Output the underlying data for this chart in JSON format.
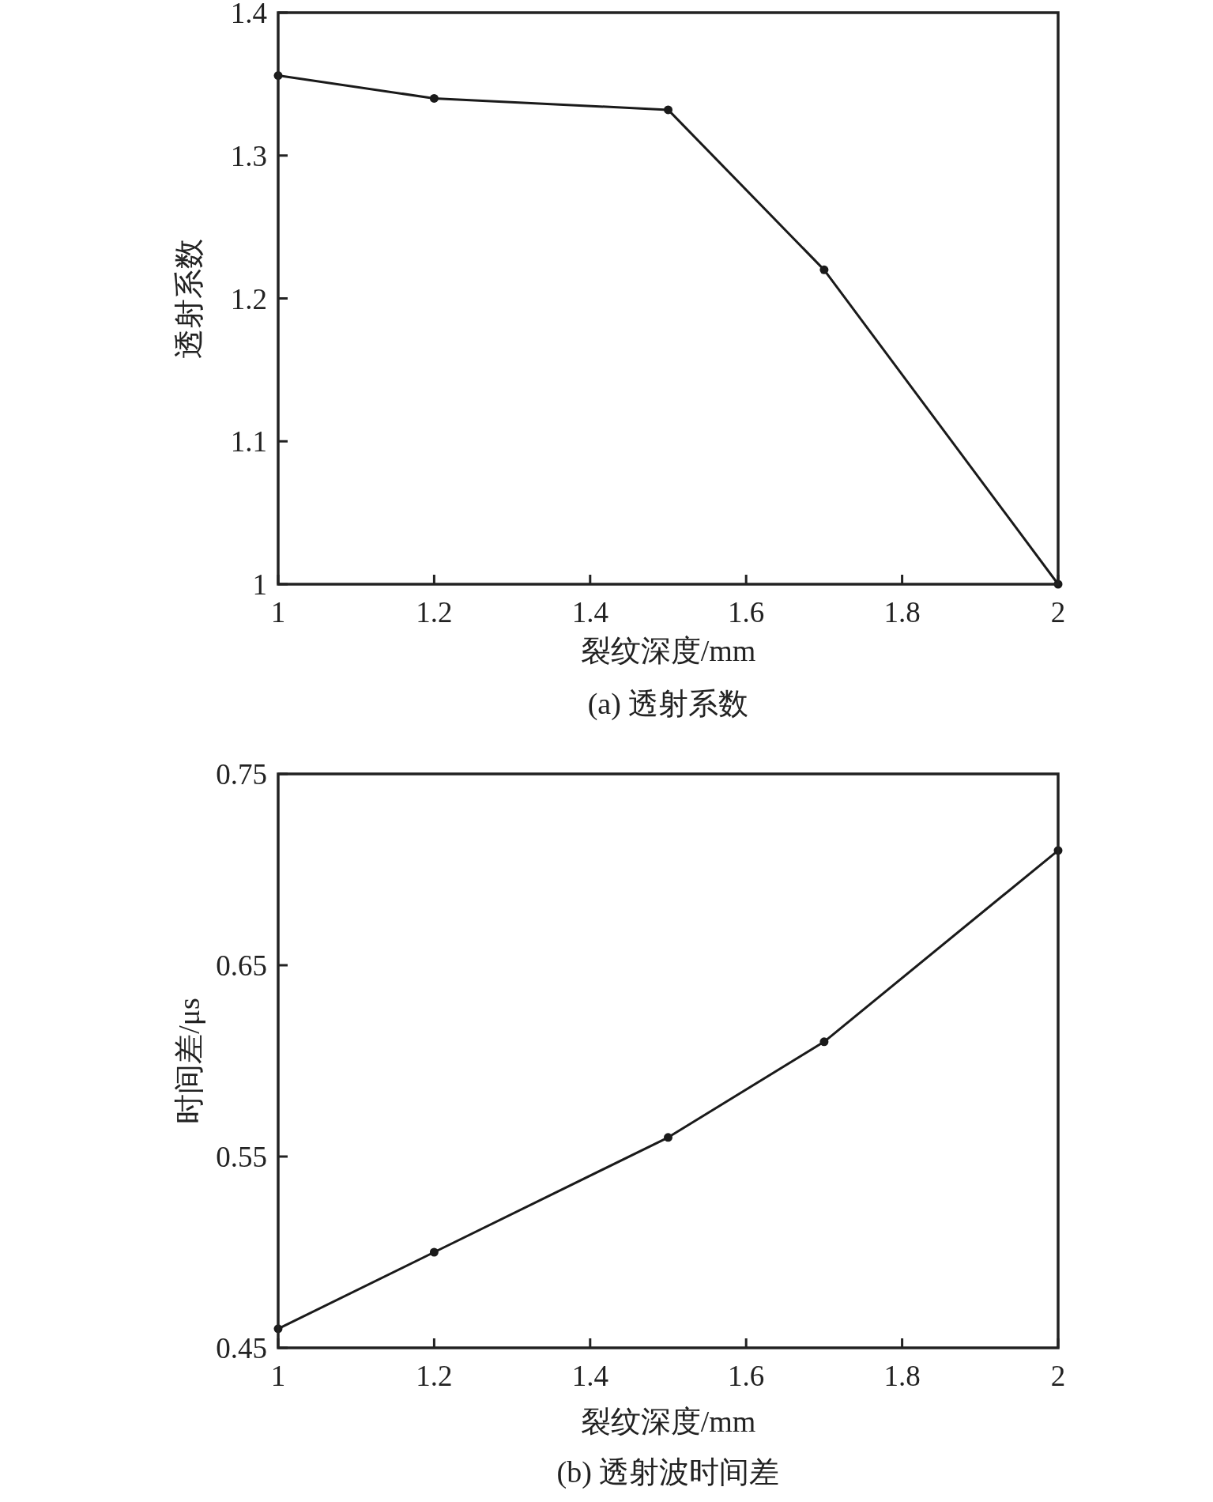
{
  "chart_data": [
    {
      "type": "line",
      "xlabel": "裂纹深度/mm",
      "ylabel": "透射系数",
      "annotations": [
        "(a) 透射系数"
      ],
      "x": [
        1,
        1.2,
        1.5,
        1.7,
        2
      ],
      "values": [
        1.356,
        1.34,
        1.332,
        1.22,
        1.0
      ],
      "color": "#1a1a1a",
      "marker": "circle",
      "line_style": "solid",
      "xlim": [
        1,
        2
      ],
      "ylim": [
        1,
        1.4
      ],
      "xticks": [
        1,
        1.2,
        1.4,
        1.6,
        1.8,
        2
      ],
      "yticks": [
        1,
        1.1,
        1.2,
        1.3,
        1.4
      ]
    },
    {
      "type": "line",
      "xlabel": "裂纹深度/mm",
      "ylabel": "时间差/μs",
      "annotations": [
        "(b) 透射波时间差"
      ],
      "x": [
        1,
        1.2,
        1.5,
        1.7,
        2
      ],
      "values": [
        0.46,
        0.5,
        0.56,
        0.61,
        0.71
      ],
      "color": "#1a1a1a",
      "marker": "circle",
      "line_style": "solid",
      "xlim": [
        1,
        2
      ],
      "ylim": [
        0.45,
        0.75
      ],
      "xticks": [
        1,
        1.2,
        1.4,
        1.6,
        1.8,
        2
      ],
      "yticks": [
        0.45,
        0.55,
        0.65,
        0.75
      ]
    }
  ]
}
